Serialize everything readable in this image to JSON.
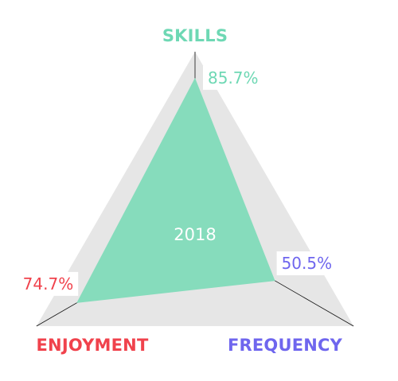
{
  "chart_data": {
    "type": "radar",
    "series_label": "2018",
    "max": 100,
    "axes": [
      {
        "key": "skills",
        "label": "SKILLS",
        "value": 85.7,
        "value_label": "85.7%",
        "color": "#6ed8b4"
      },
      {
        "key": "frequency",
        "label": "FREQUENCY",
        "value": 50.5,
        "value_label": "50.5%",
        "color": "#6f66ee"
      },
      {
        "key": "enjoyment",
        "label": "ENJOYMENT",
        "value": 74.7,
        "value_label": "74.7%",
        "color": "#f0424c"
      }
    ],
    "background_color": "#e6e6e6",
    "fill_color": "#86dcbc",
    "spoke_color": "#111111",
    "center_label_color": "#ffffff"
  }
}
